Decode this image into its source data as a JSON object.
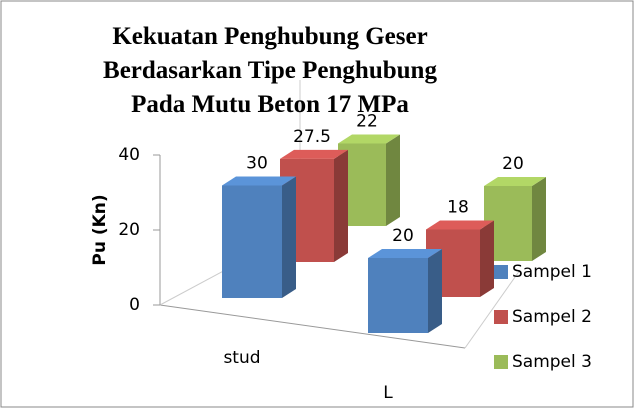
{
  "chart_data": {
    "type": "bar3d",
    "title": "Kekuatan Penghubung Geser Berdasarkan Tipe Penghubung Pada Mutu Beton 17 MPa",
    "y_label": "Pu (Kn)",
    "categories": [
      "stud",
      "L"
    ],
    "series": [
      {
        "name": "Sampel 1",
        "color": "#4f81bd",
        "values": [
          30,
          20
        ]
      },
      {
        "name": "Sampel 2",
        "color": "#c0504d",
        "values": [
          27.5,
          18
        ]
      },
      {
        "name": "Sampel 3",
        "color": "#9bbb59",
        "values": [
          22,
          20
        ]
      }
    ],
    "ylim": [
      0,
      40
    ],
    "yticks": [
      0,
      20,
      40
    ],
    "legend": "right"
  }
}
